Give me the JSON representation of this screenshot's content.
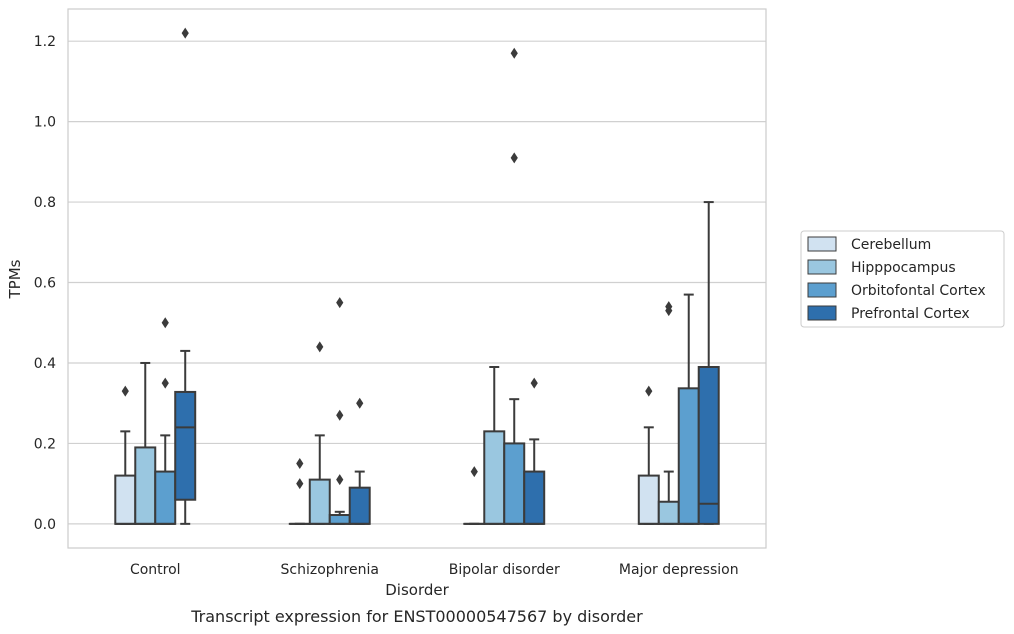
{
  "caption": "Transcript expression for ENST00000547567 by disorder",
  "chart_data": {
    "type": "box",
    "xlabel": "Disorder",
    "ylabel": "TPMs",
    "ylim": [
      -0.06,
      1.28
    ],
    "yticks": [
      "0.0",
      "0.2",
      "0.4",
      "0.6",
      "0.8",
      "1.0",
      "1.2"
    ],
    "grid": "horizontal",
    "legend_position": "right",
    "categories": [
      "Control",
      "Schizophrenia",
      "Bipolar disorder",
      "Major depression"
    ],
    "series": [
      {
        "name": "Cerebellum",
        "color": "#d1e2f1",
        "boxes": [
          {
            "min": 0,
            "q1": 0,
            "median": 0,
            "q3": 0.12,
            "max": 0.23,
            "outliers": [
              0.33
            ]
          },
          {
            "min": 0,
            "q1": 0,
            "median": 0,
            "q3": 0,
            "max": 0,
            "outliers": [
              0.1,
              0.15
            ]
          },
          {
            "min": 0,
            "q1": 0,
            "median": 0,
            "q3": 0,
            "max": 0,
            "outliers": [
              0.13
            ]
          },
          {
            "min": 0,
            "q1": 0,
            "median": 0,
            "q3": 0.12,
            "max": 0.24,
            "outliers": [
              0.33
            ]
          }
        ]
      },
      {
        "name": "Hipppocampus",
        "color": "#9ac7e0",
        "boxes": [
          {
            "min": 0,
            "q1": 0,
            "median": 0,
            "q3": 0.19,
            "max": 0.4,
            "outliers": []
          },
          {
            "min": 0,
            "q1": 0,
            "median": 0,
            "q3": 0.11,
            "max": 0.22,
            "outliers": [
              0.44
            ]
          },
          {
            "min": 0,
            "q1": 0,
            "median": 0,
            "q3": 0.23,
            "max": 0.39,
            "outliers": []
          },
          {
            "min": 0,
            "q1": 0,
            "median": 0,
            "q3": 0.055,
            "max": 0.13,
            "outliers": [
              0.53,
              0.54
            ]
          }
        ]
      },
      {
        "name": "Orbitofontal Cortex",
        "color": "#5c9fcf",
        "boxes": [
          {
            "min": 0,
            "q1": 0,
            "median": 0,
            "q3": 0.13,
            "max": 0.22,
            "outliers": [
              0.35,
              0.5
            ]
          },
          {
            "min": 0,
            "q1": 0,
            "median": 0,
            "q3": 0.022,
            "max": 0.03,
            "outliers": [
              0.11,
              0.27,
              0.55
            ]
          },
          {
            "min": 0,
            "q1": 0,
            "median": 0,
            "q3": 0.2,
            "max": 0.31,
            "outliers": [
              0.91,
              1.17
            ]
          },
          {
            "min": 0,
            "q1": 0,
            "median": 0,
            "q3": 0.337,
            "max": 0.57,
            "outliers": []
          }
        ]
      },
      {
        "name": "Prefrontal Cortex",
        "color": "#2e6fad",
        "boxes": [
          {
            "min": 0,
            "q1": 0.06,
            "median": 0.24,
            "q3": 0.328,
            "max": 0.43,
            "outliers": [
              1.22
            ]
          },
          {
            "min": 0,
            "q1": 0,
            "median": 0,
            "q3": 0.09,
            "max": 0.13,
            "outliers": [
              0.3
            ]
          },
          {
            "min": 0,
            "q1": 0,
            "median": 0,
            "q3": 0.13,
            "max": 0.21,
            "outliers": [
              0.35
            ]
          },
          {
            "min": 0,
            "q1": 0,
            "median": 0.05,
            "q3": 0.39,
            "max": 0.8,
            "outliers": []
          }
        ]
      }
    ]
  }
}
